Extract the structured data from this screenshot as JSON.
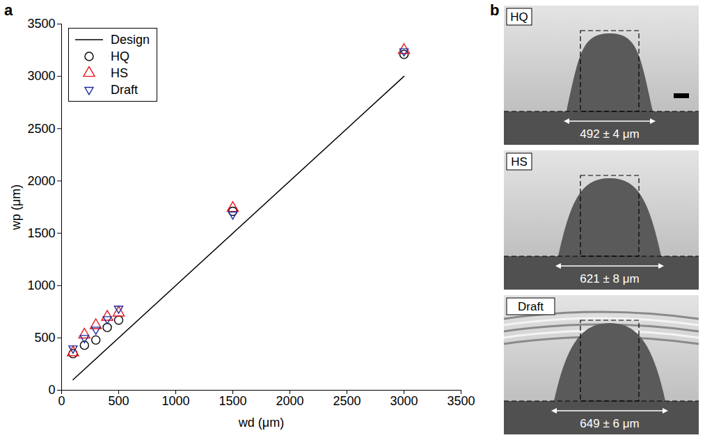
{
  "chart_data": {
    "type": "scatter",
    "panel_label": "a",
    "x_label": "wd (μm)",
    "y_label": "wp (μm)",
    "xlim": [
      0,
      3500
    ],
    "ylim": [
      0,
      3500
    ],
    "xticks": [
      0,
      500,
      1000,
      1500,
      2000,
      2500,
      3000,
      3500
    ],
    "yticks": [
      0,
      500,
      1000,
      1500,
      2000,
      2500,
      3000,
      3500
    ],
    "grid": false,
    "legend": "upper left",
    "series": [
      {
        "name": "Design",
        "type": "line",
        "color": "#000000",
        "line_style": "solid",
        "x": [
          100,
          3000
        ],
        "values": [
          100,
          3000
        ]
      },
      {
        "name": "HQ",
        "type": "scatter",
        "color": "#000000",
        "marker": "circle",
        "x": [
          100,
          200,
          300,
          400,
          500,
          1500,
          3000
        ],
        "values": [
          350,
          430,
          480,
          600,
          670,
          1710,
          3210
        ]
      },
      {
        "name": "HS",
        "type": "scatter",
        "color": "#e8141c",
        "marker": "triangle",
        "x": [
          100,
          200,
          300,
          400,
          500,
          1500,
          3000
        ],
        "values": [
          360,
          530,
          620,
          700,
          740,
          1740,
          3250
        ]
      },
      {
        "name": "Draft",
        "type": "scatter",
        "color": "#1c2a9c",
        "marker": "triangle_down",
        "x": [
          100,
          200,
          300,
          400,
          500,
          1500,
          3000
        ],
        "values": [
          400,
          500,
          580,
          680,
          780,
          1680,
          3240
        ]
      }
    ]
  },
  "images": {
    "panel_label": "b",
    "panels": [
      {
        "label": "HQ",
        "width": "492 ± 4 μm"
      },
      {
        "label": "HS",
        "width": "621 ± 8 μm"
      },
      {
        "label": "Draft",
        "width": "649 ± 6 μm"
      }
    ]
  }
}
